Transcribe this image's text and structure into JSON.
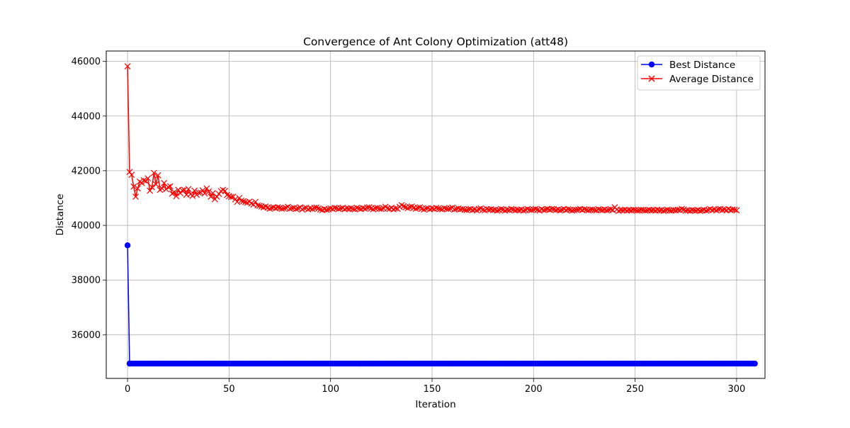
{
  "chart_data": {
    "type": "line",
    "title": "Convergence of Ant Colony Optimization (att48)",
    "xlabel": "Iteration",
    "ylabel": "Distance",
    "xlim": [
      -10.5,
      314
    ],
    "ylim": [
      34400,
      46380
    ],
    "x_ticks": [
      0,
      50,
      100,
      150,
      200,
      250,
      300
    ],
    "y_ticks": [
      36000,
      38000,
      40000,
      42000,
      44000,
      46000
    ],
    "grid": true,
    "legend_position": "upper right",
    "series": [
      {
        "name": "Best Distance",
        "color": "#0000ff",
        "marker": "circle",
        "x_start": 0,
        "x_step": 1,
        "values": [
          39270,
          34942,
          34942,
          34942,
          34942,
          34942,
          34942,
          34942,
          34942,
          34942,
          34942,
          34942,
          34942,
          34942,
          34942,
          34942,
          34942,
          34942,
          34942,
          34942,
          34942,
          34942,
          34942,
          34942,
          34942,
          34942,
          34942,
          34942,
          34942,
          34942,
          34942,
          34942,
          34942,
          34942,
          34942,
          34942,
          34942,
          34942,
          34942,
          34942,
          34942,
          34942,
          34942,
          34942,
          34942,
          34942,
          34942,
          34942,
          34942,
          34942,
          34942,
          34942,
          34942,
          34942,
          34942,
          34942,
          34942,
          34942,
          34942,
          34942,
          34942,
          34942,
          34942,
          34942,
          34942,
          34942,
          34942,
          34942,
          34942,
          34942,
          34942,
          34942,
          34942,
          34942,
          34942,
          34942,
          34942,
          34942,
          34942,
          34942,
          34942,
          34942,
          34942,
          34942,
          34942,
          34942,
          34942,
          34942,
          34942,
          34942,
          34942,
          34942,
          34942,
          34942,
          34942,
          34942,
          34942,
          34942,
          34942,
          34942,
          34942,
          34942,
          34942,
          34942,
          34942,
          34942,
          34942,
          34942,
          34942,
          34942,
          34942,
          34942,
          34942,
          34942,
          34942,
          34942,
          34942,
          34942,
          34942,
          34942,
          34942,
          34942,
          34942,
          34942,
          34942,
          34942,
          34942,
          34942,
          34942,
          34942,
          34942,
          34942,
          34942,
          34942,
          34942,
          34942,
          34942,
          34942,
          34942,
          34942,
          34942,
          34942,
          34942,
          34942,
          34942,
          34942,
          34942,
          34942,
          34942,
          34942,
          34942,
          34942,
          34942,
          34942,
          34942,
          34942,
          34942,
          34942,
          34942,
          34942,
          34942,
          34942,
          34942,
          34942,
          34942,
          34942,
          34942,
          34942,
          34942,
          34942,
          34942,
          34942,
          34942,
          34942,
          34942,
          34942,
          34942,
          34942,
          34942,
          34942,
          34942,
          34942,
          34942,
          34942,
          34942,
          34942,
          34942,
          34942,
          34942,
          34942,
          34942,
          34942,
          34942,
          34942,
          34942,
          34942,
          34942,
          34942,
          34942,
          34942,
          34942,
          34942,
          34942,
          34942,
          34942,
          34942,
          34942,
          34942,
          34942,
          34942,
          34942,
          34942,
          34942,
          34942,
          34942,
          34942,
          34942,
          34942,
          34942,
          34942,
          34942,
          34942,
          34942,
          34942,
          34942,
          34942,
          34942,
          34942,
          34942,
          34942,
          34942,
          34942,
          34942,
          34942,
          34942,
          34942,
          34942,
          34942,
          34942,
          34942,
          34942,
          34942,
          34942,
          34942,
          34942,
          34942,
          34942,
          34942,
          34942,
          34942,
          34942,
          34942,
          34942,
          34942,
          34942,
          34942,
          34942,
          34942,
          34942,
          34942,
          34942,
          34942,
          34942,
          34942,
          34942,
          34942,
          34942,
          34942,
          34942,
          34942,
          34942,
          34942,
          34942,
          34942,
          34942,
          34942,
          34942,
          34942,
          34942,
          34942,
          34942,
          34942,
          34942,
          34942,
          34942,
          34942,
          34942,
          34942,
          34942,
          34942,
          34942,
          34942,
          34942,
          34942,
          34942,
          34942,
          34942,
          34942,
          34942,
          34942,
          34942,
          34942,
          34942,
          34942,
          34942,
          34942,
          34942,
          34942,
          34942,
          34942
        ]
      },
      {
        "name": "Average Distance",
        "color": "#ff0000",
        "marker": "x",
        "x_start": 0,
        "x_step": 1,
        "values": [
          45820,
          41950,
          41850,
          41420,
          41050,
          41350,
          41600,
          41550,
          41650,
          41620,
          41720,
          41270,
          41400,
          41920,
          41500,
          41830,
          41300,
          41350,
          41550,
          41320,
          41400,
          41430,
          41160,
          41220,
          41070,
          41300,
          41180,
          41280,
          41300,
          41120,
          41330,
          41140,
          41080,
          41270,
          41120,
          41200,
          41200,
          41280,
          41170,
          41350,
          41240,
          41050,
          41180,
          40960,
          41050,
          41150,
          41250,
          41300,
          41260,
          41110,
          41070,
          41040,
          41050,
          40950,
          40860,
          41000,
          40900,
          40880,
          40850,
          40830,
          40870,
          40800,
          40760,
          40860,
          40730,
          40720,
          40690,
          40660,
          40690,
          40650,
          40610,
          40640,
          40660,
          40630,
          40660,
          40640,
          40610,
          40620,
          40640,
          40680,
          40610,
          40630,
          40640,
          40600,
          40620,
          40660,
          40580,
          40630,
          40640,
          40590,
          40620,
          40600,
          40640,
          40650,
          40620,
          40580,
          40560,
          40600,
          40570,
          40590,
          40620,
          40600,
          40640,
          40630,
          40600,
          40620,
          40640,
          40590,
          40620,
          40610,
          40630,
          40600,
          40590,
          40640,
          40620,
          40600,
          40630,
          40610,
          40650,
          40660,
          40620,
          40590,
          40630,
          40640,
          40610,
          40600,
          40630,
          40680,
          40620,
          40600,
          40640,
          40590,
          40620,
          40610,
          40680,
          40740,
          40700,
          40660,
          40630,
          40670,
          40690,
          40640,
          40610,
          40640,
          40660,
          40610,
          40580,
          40620,
          40630,
          40590,
          40620,
          40600,
          40640,
          40620,
          40600,
          40590,
          40630,
          40610,
          40600,
          40620,
          40650,
          40580,
          40600,
          40620,
          40590,
          40600,
          40570,
          40560,
          40590,
          40600,
          40560,
          40580,
          40550,
          40600,
          40620,
          40570,
          40550,
          40600,
          40580,
          40590,
          40560,
          40570,
          40540,
          40560,
          40600,
          40580,
          40540,
          40570,
          40560,
          40600,
          40580,
          40550,
          40570,
          40560,
          40580,
          40540,
          40560,
          40600,
          40570,
          40560,
          40580,
          40600,
          40570,
          40540,
          40590,
          40560,
          40580,
          40600,
          40570,
          40600,
          40590,
          40560,
          40580,
          40550,
          40570,
          40600,
          40560,
          40590,
          40570,
          40540,
          40560,
          40570,
          40580,
          40600,
          40560,
          40590,
          40570,
          40550,
          40570,
          40580,
          40560,
          40550,
          40590,
          40570,
          40560,
          40580,
          40550,
          40570,
          40590,
          40560,
          40660,
          40580,
          40530,
          40560,
          40550,
          40570,
          40540,
          40560,
          40550,
          40570,
          40560,
          40540,
          40550,
          40570,
          40560,
          40540,
          40550,
          40570,
          40550,
          40560,
          40540,
          40570,
          40550,
          40560,
          40530,
          40550,
          40570,
          40550,
          40540,
          40560,
          40550,
          40570,
          40560,
          40600,
          40580,
          40540,
          40550,
          40530,
          40560,
          40550,
          40540,
          40560,
          40530,
          40550,
          40570,
          40540,
          40560,
          40600,
          40560,
          40580,
          40550,
          40590,
          40600,
          40560,
          40580,
          40550,
          40600,
          40560,
          40580,
          40570,
          40550
        ]
      }
    ]
  }
}
